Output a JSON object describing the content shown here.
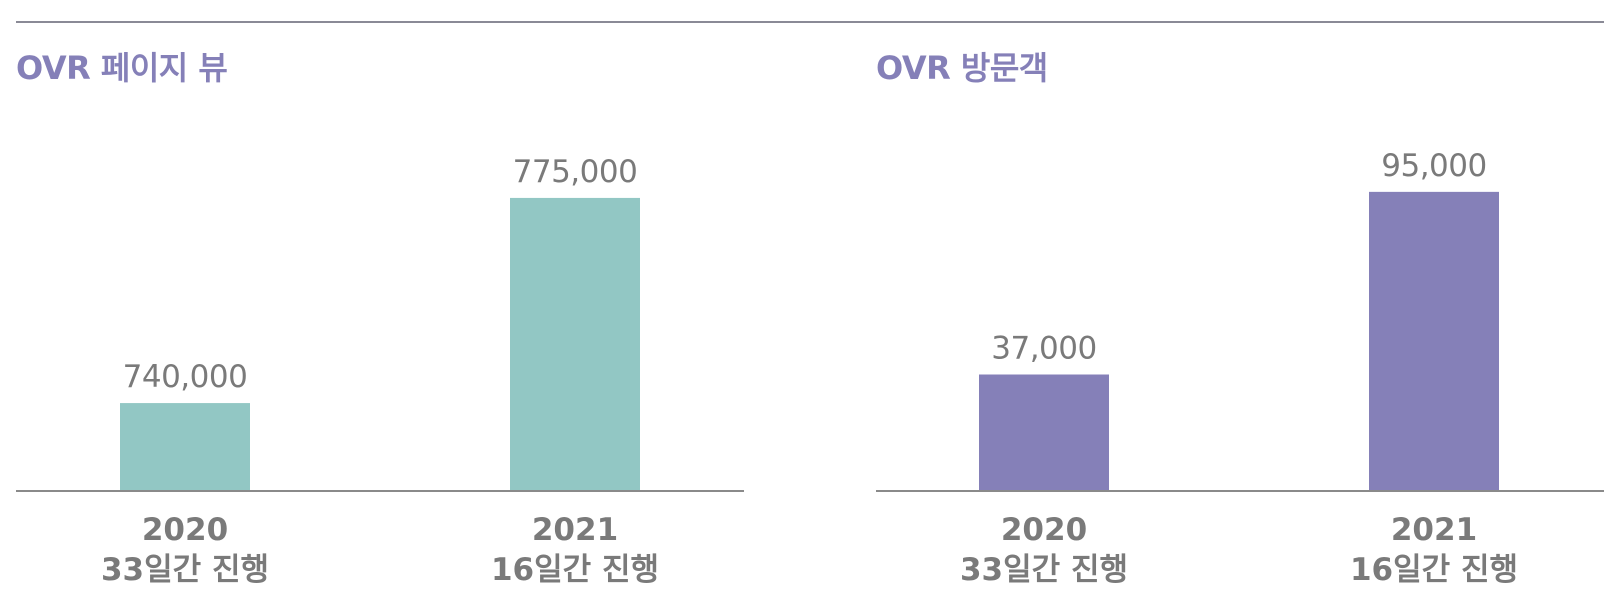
{
  "colors": {
    "title": "#8580b8",
    "rule": "#8a8a96",
    "axis": "#8a8a8a",
    "label": "#7a7a7a",
    "teal": "#92c7c4",
    "purple": "#8580b8"
  },
  "chart_data": [
    {
      "type": "bar",
      "title": "OVR 페이지 뷰",
      "categories": [
        {
          "year": "2020",
          "duration": "33일간 진행"
        },
        {
          "year": "2021",
          "duration": "16일간 진행"
        }
      ],
      "values": [
        740000,
        775000
      ],
      "value_labels": [
        "740,000",
        "775,000"
      ],
      "ylim": [
        725000,
        790000
      ],
      "color": "#92c7c4",
      "grid": false,
      "legend": "none"
    },
    {
      "type": "bar",
      "title": "OVR 방문객",
      "categories": [
        {
          "year": "2020",
          "duration": "33일간 진행"
        },
        {
          "year": "2021",
          "duration": "16일간 진행"
        }
      ],
      "values": [
        37000,
        95000
      ],
      "value_labels": [
        "37,000",
        "95,000"
      ],
      "ylim": [
        0,
        121000
      ],
      "color": "#8580b8",
      "grid": false,
      "legend": "none"
    }
  ]
}
